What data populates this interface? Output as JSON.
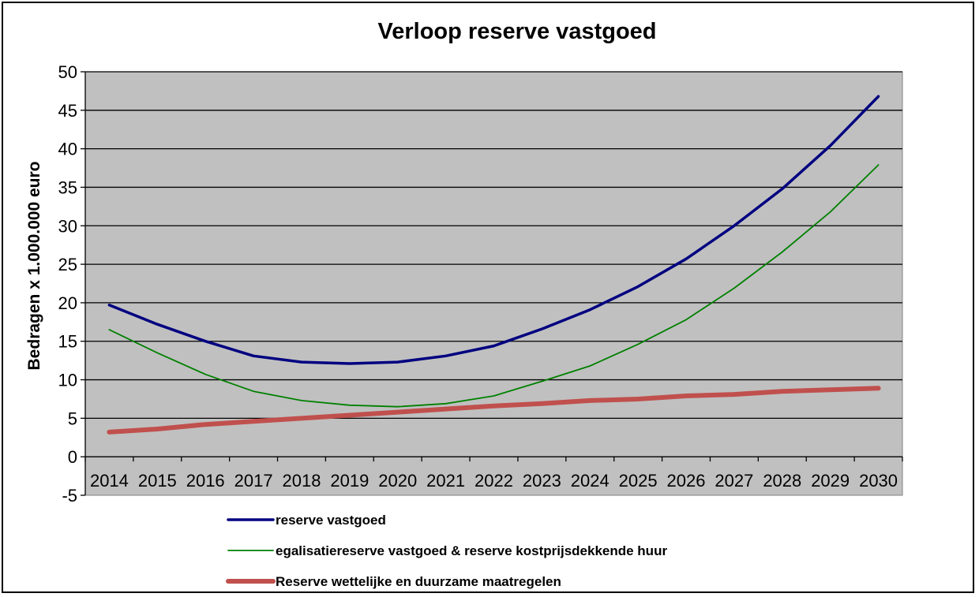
{
  "chart_data": {
    "type": "line",
    "title": "Verloop reserve vastgoed",
    "xlabel": "",
    "ylabel": "Bedragen x 1.000.000 euro",
    "ylim": [
      -5,
      50
    ],
    "yticks": [
      -5,
      0,
      5,
      10,
      15,
      20,
      25,
      30,
      35,
      40,
      45,
      50
    ],
    "grid": true,
    "legend": "bottom",
    "categories": [
      "2014",
      "2015",
      "2016",
      "2017",
      "2018",
      "2019",
      "2020",
      "2021",
      "2022",
      "2023",
      "2024",
      "2025",
      "2026",
      "2027",
      "2028",
      "2029",
      "2030"
    ],
    "series": [
      {
        "name": "reserve vastgoed",
        "color": "#000080",
        "values": [
          19.7,
          17.2,
          15.0,
          13.1,
          12.3,
          12.1,
          12.3,
          13.1,
          14.4,
          16.6,
          19.1,
          22.1,
          25.7,
          30.0,
          34.8,
          40.4,
          46.8
        ]
      },
      {
        "name": "egalisatiereserve vastgoed & reserve kostprijsdekkende huur",
        "color": "#008000",
        "values": [
          16.5,
          13.5,
          10.7,
          8.5,
          7.3,
          6.7,
          6.5,
          6.9,
          7.9,
          9.8,
          11.8,
          14.6,
          17.8,
          21.9,
          26.6,
          31.8,
          37.9
        ]
      },
      {
        "name": "Reserve wettelijke en duurzame maatregelen",
        "color": "#c0504d",
        "values": [
          3.2,
          3.6,
          4.2,
          4.6,
          5.0,
          5.4,
          5.8,
          6.2,
          6.6,
          6.9,
          7.3,
          7.5,
          7.9,
          8.1,
          8.5,
          8.7,
          8.9
        ]
      }
    ]
  }
}
